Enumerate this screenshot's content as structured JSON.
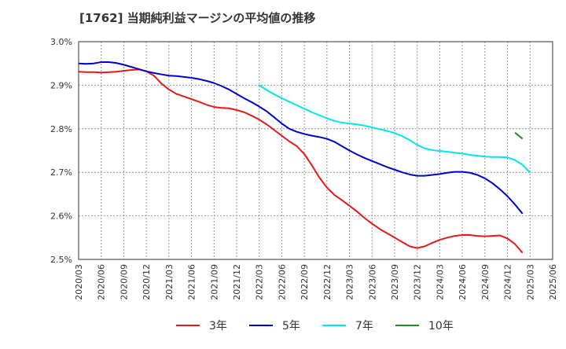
{
  "chart_data": {
    "type": "line",
    "title": "[1762]  当期純利益マージンの平均値の推移",
    "xlabel": "",
    "ylabel": "",
    "ylim": [
      2.5,
      3.0
    ],
    "y_ticks": [
      "3.0%",
      "2.9%",
      "2.8%",
      "2.7%",
      "2.6%",
      "2.5%"
    ],
    "y_tick_values": [
      3.0,
      2.9,
      2.8,
      2.7,
      2.6,
      2.5
    ],
    "x_tick_labels": [
      "2020/03",
      "2020/06",
      "2020/09",
      "2020/12",
      "2021/03",
      "2021/06",
      "2021/09",
      "2021/12",
      "2022/03",
      "2022/06",
      "2022/09",
      "2022/12",
      "2023/03",
      "2023/06",
      "2023/09",
      "2023/12",
      "2024/03",
      "2024/06",
      "2024/09",
      "2024/12",
      "2025/03",
      "2025/06"
    ],
    "grid": true,
    "legend_position": "bottom",
    "series": [
      {
        "name": "3年",
        "color": "#e41a1c",
        "start_index": 0,
        "values": [
          2.931,
          2.93,
          2.93,
          2.929,
          2.93,
          2.931,
          2.933,
          2.935,
          2.936,
          2.932,
          2.922,
          2.904,
          2.89,
          2.88,
          2.874,
          2.868,
          2.862,
          2.855,
          2.85,
          2.848,
          2.847,
          2.843,
          2.838,
          2.83,
          2.821,
          2.81,
          2.797,
          2.784,
          2.771,
          2.76,
          2.742,
          2.716,
          2.688,
          2.665,
          2.648,
          2.636,
          2.623,
          2.61,
          2.595,
          2.582,
          2.57,
          2.56,
          2.55,
          2.54,
          2.53,
          2.526,
          2.53,
          2.538,
          2.545,
          2.55,
          2.554,
          2.556,
          2.556,
          2.554,
          2.553,
          2.554,
          2.555,
          2.548,
          2.535,
          2.515
        ]
      },
      {
        "name": "5年",
        "color": "#0000cd",
        "start_index": 0,
        "values": [
          2.95,
          2.949,
          2.95,
          2.953,
          2.953,
          2.951,
          2.947,
          2.942,
          2.937,
          2.932,
          2.928,
          2.925,
          2.922,
          2.921,
          2.919,
          2.917,
          2.914,
          2.91,
          2.905,
          2.898,
          2.89,
          2.88,
          2.87,
          2.861,
          2.851,
          2.84,
          2.826,
          2.812,
          2.8,
          2.793,
          2.788,
          2.784,
          2.781,
          2.777,
          2.77,
          2.76,
          2.75,
          2.741,
          2.733,
          2.726,
          2.719,
          2.712,
          2.706,
          2.7,
          2.695,
          2.692,
          2.692,
          2.694,
          2.696,
          2.699,
          2.701,
          2.701,
          2.699,
          2.694,
          2.686,
          2.675,
          2.661,
          2.645,
          2.626,
          2.605
        ]
      },
      {
        "name": "7年",
        "color": "#00e5ee",
        "start_index": 24,
        "values": [
          2.9,
          2.889,
          2.879,
          2.87,
          2.862,
          2.854,
          2.846,
          2.838,
          2.831,
          2.824,
          2.818,
          2.814,
          2.812,
          2.81,
          2.807,
          2.803,
          2.799,
          2.795,
          2.79,
          2.783,
          2.774,
          2.763,
          2.755,
          2.751,
          2.749,
          2.747,
          2.745,
          2.743,
          2.74,
          2.738,
          2.736,
          2.735,
          2.735,
          2.734,
          2.728,
          2.717,
          2.699
        ]
      },
      {
        "name": "10年",
        "color": "#228b22",
        "start_index": 58,
        "values": [
          2.791,
          2.777
        ]
      }
    ]
  }
}
